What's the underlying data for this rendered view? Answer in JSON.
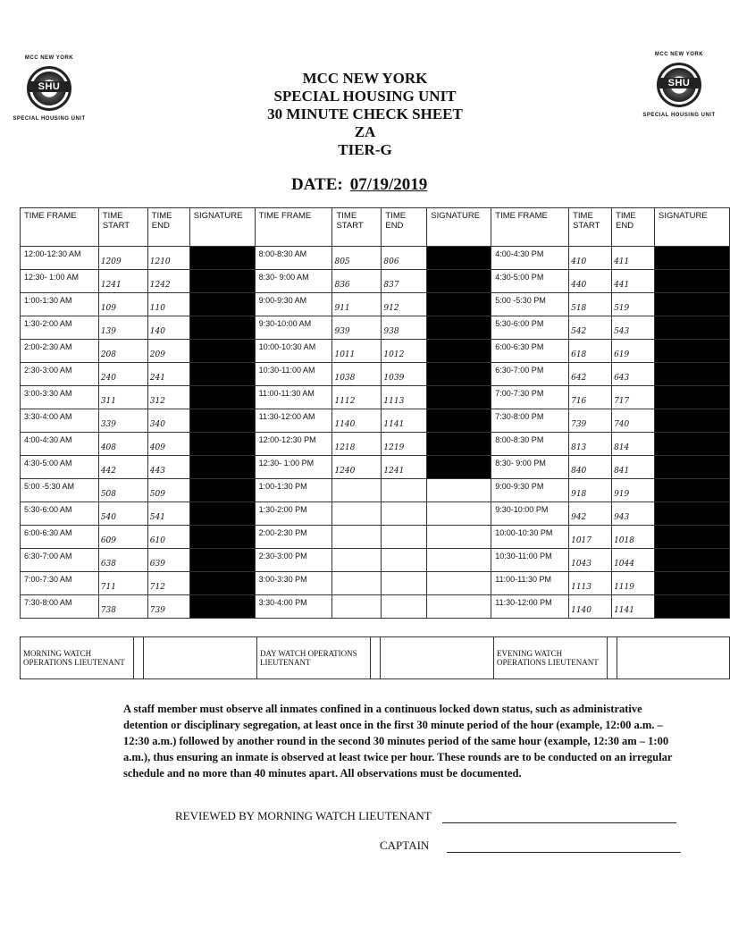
{
  "logo": {
    "top": "MCC NEW YORK",
    "center": "SHU",
    "bottom": "SPECIAL HOUSING UNIT"
  },
  "header": {
    "line1": "MCC NEW YORK",
    "line2": "SPECIAL HOUSING UNIT",
    "line3": "30 MINUTE CHECK SHEET",
    "line4": "ZA",
    "line5": "TIER-G"
  },
  "date": {
    "label": "DATE:",
    "value": "07/19/2019"
  },
  "columns": [
    "TIME FRAME",
    "TIME START",
    "TIME END",
    "SIGNATURE"
  ],
  "rows": [
    [
      [
        "12:00-12:30 AM",
        "1209",
        "1210"
      ],
      [
        "8:00-8:30 AM",
        "805",
        "806"
      ],
      [
        "4:00-4:30 PM",
        "410",
        "411"
      ]
    ],
    [
      [
        "12:30- 1:00 AM",
        "1241",
        "1242"
      ],
      [
        "8:30- 9:00 AM",
        "836",
        "837"
      ],
      [
        "4:30-5:00 PM",
        "440",
        "441"
      ]
    ],
    [
      [
        "1:00-1:30 AM",
        "109",
        "110"
      ],
      [
        "9:00-9:30 AM",
        "911",
        "912"
      ],
      [
        "5:00 -5:30 PM",
        "518",
        "519"
      ]
    ],
    [
      [
        "1:30-2:00 AM",
        "139",
        "140"
      ],
      [
        "9:30-10:00 AM",
        "939",
        "938"
      ],
      [
        "5:30-6:00 PM",
        "542",
        "543"
      ]
    ],
    [
      [
        "2:00-2:30 AM",
        "208",
        "209"
      ],
      [
        "10:00-10:30 AM",
        "1011",
        "1012"
      ],
      [
        "6:00-6:30 PM",
        "618",
        "619"
      ]
    ],
    [
      [
        "2:30-3:00 AM",
        "240",
        "241"
      ],
      [
        "10:30-11:00 AM",
        "1038",
        "1039"
      ],
      [
        "6:30-7:00 PM",
        "642",
        "643"
      ]
    ],
    [
      [
        "3:00-3:30 AM",
        "311",
        "312"
      ],
      [
        "11:00-11:30 AM",
        "1112",
        "1113"
      ],
      [
        "7:00-7:30 PM",
        "716",
        "717"
      ]
    ],
    [
      [
        "3:30-4:00 AM",
        "339",
        "340"
      ],
      [
        "11:30-12:00 AM",
        "1140",
        "1141"
      ],
      [
        "7:30-8:00 PM",
        "739",
        "740"
      ]
    ],
    [
      [
        "4:00-4:30 AM",
        "408",
        "409"
      ],
      [
        "12:00-12:30 PM",
        "1218",
        "1219"
      ],
      [
        "8:00-8:30 PM",
        "813",
        "814"
      ]
    ],
    [
      [
        "4:30-5:00 AM",
        "442",
        "443"
      ],
      [
        "12:30- 1:00 PM",
        "1240",
        "1241"
      ],
      [
        "8:30- 9:00 PM",
        "840",
        "841"
      ]
    ],
    [
      [
        "5:00 -5:30 AM",
        "508",
        "509"
      ],
      [
        "1:00-1:30 PM",
        "",
        ""
      ],
      [
        "9:00-9:30 PM",
        "918",
        "919"
      ]
    ],
    [
      [
        "5:30-6:00 AM",
        "540",
        "541"
      ],
      [
        "1:30-2:00 PM",
        "",
        ""
      ],
      [
        "9:30-10:00 PM",
        "942",
        "943"
      ]
    ],
    [
      [
        "6:00-6:30 AM",
        "609",
        "610"
      ],
      [
        "2:00-2:30 PM",
        "",
        ""
      ],
      [
        "10:00-10:30 PM",
        "1017",
        "1018"
      ]
    ],
    [
      [
        "6:30-7:00 AM",
        "638",
        "639"
      ],
      [
        "2:30-3:00 PM",
        "",
        ""
      ],
      [
        "10:30-11:00 PM",
        "1043",
        "1044"
      ]
    ],
    [
      [
        "7:00-7:30 AM",
        "711",
        "712"
      ],
      [
        "3:00-3:30 PM",
        "",
        ""
      ],
      [
        "11:00-11:30 PM",
        "1113",
        "1119"
      ]
    ],
    [
      [
        "7:30-8:00 AM",
        "738",
        "739"
      ],
      [
        "3:30-4:00 PM",
        "",
        ""
      ],
      [
        "11:30-12:00 PM",
        "1140",
        "1141"
      ]
    ]
  ],
  "watch": {
    "morning": "MORNING WATCH OPERATIONS LIEUTENANT",
    "day": "DAY WATCH OPERATIONS LIEUTENANT",
    "evening": "EVENING WATCH OPERATIONS LIEUTENANT"
  },
  "paragraph": "A staff member must observe all inmates confined in a continuous locked down status, such as administrative detention or disciplinary segregation, at least once in the first 30 minute period of the hour (example, 12:00 a.m. – 12:30 a.m.) followed by another round in the second 30 minutes period of the same hour (example, 12:30 am – 1:00 a.m.), thus ensuring an inmate is observed at least twice per hour. These rounds are to be conducted on an irregular schedule and no more than 40 minutes apart. All observations must be documented.",
  "reviewed_label": "REVIEWED BY MORNING WATCH LIEUTENANT",
  "captain_label": "CAPTAIN"
}
